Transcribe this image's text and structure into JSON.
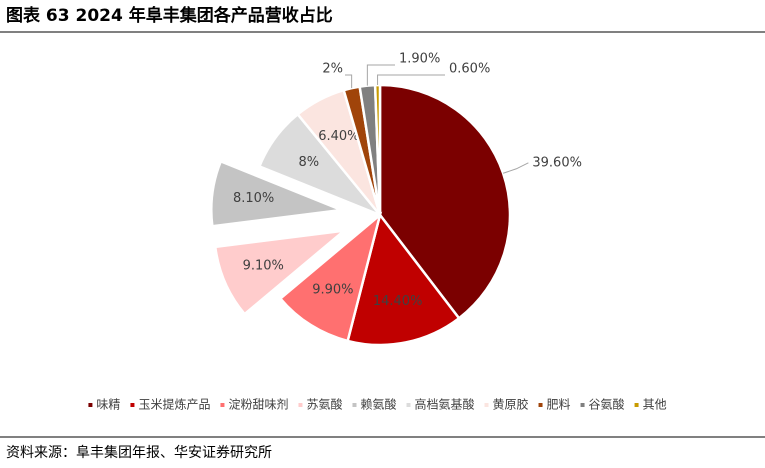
{
  "chart_data": {
    "type": "pie",
    "title": "图表 63 2024 年阜丰集团各产品营收占比",
    "source": "资料来源：阜丰集团年报、华安证券研究所",
    "categories": [
      "味精",
      "玉米提炼产品",
      "淀粉甜味剂",
      "苏氨酸",
      "赖氨酸",
      "高档氨基酸",
      "黄原胶",
      "肥料",
      "谷氨酸",
      "其他"
    ],
    "values": [
      39.6,
      14.4,
      9.9,
      9.1,
      8.1,
      8,
      6.4,
      2,
      1.9,
      0.6
    ],
    "value_labels": [
      "39.60%",
      "14.40%",
      "9.90%",
      "9.10%",
      "8.10%",
      "8%",
      "6.40%",
      "2%",
      "1.90%",
      "0.60%"
    ],
    "colors": [
      "#7b0000",
      "#c00000",
      "#ff7070",
      "#ffcccc",
      "#c4c4c4",
      "#dcdcdc",
      "#fbe5e0",
      "#a0440a",
      "#808080",
      "#c89b00"
    ],
    "explode": [
      0,
      0,
      0,
      0.3,
      0.3,
      0,
      0,
      0,
      0,
      0
    ],
    "legend": "bottom"
  }
}
